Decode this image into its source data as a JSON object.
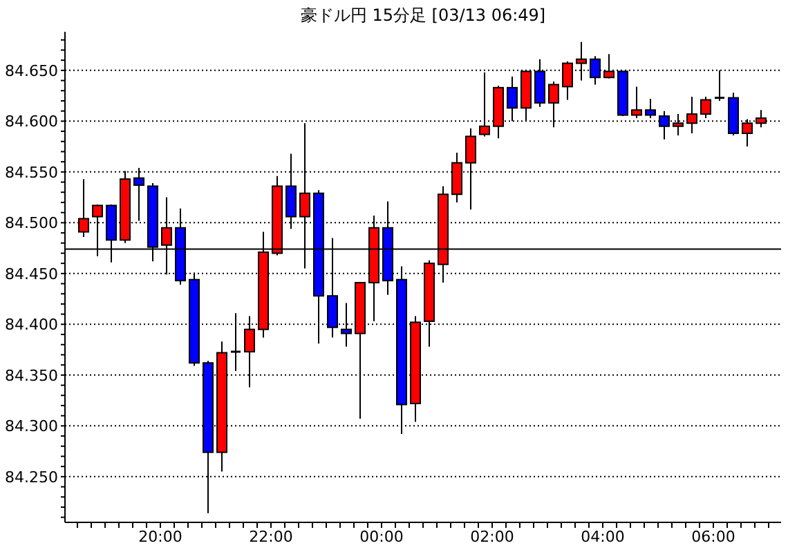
{
  "chart_data": {
    "type": "candlestick",
    "title": "豪ドル円 15分足 [03/13 06:49]",
    "x": [
      "--03-12T18:37:30",
      "--03-12T18:52:30",
      "--03-12T19:07:30",
      "--03-12T19:22:30",
      "--03-12T19:37:30",
      "--03-12T19:52:30",
      "--03-12T20:07:30",
      "--03-12T20:22:30",
      "--03-12T20:37:30",
      "--03-12T20:52:30",
      "--03-12T21:07:30",
      "--03-12T21:22:30",
      "--03-12T21:37:30",
      "--03-12T21:52:30",
      "--03-12T22:07:30",
      "--03-12T22:22:30",
      "--03-12T22:37:30",
      "--03-12T22:52:30",
      "--03-12T23:07:30",
      "--03-12T23:22:30",
      "--03-12T23:37:30",
      "--03-12T23:52:30",
      "--03-13T00:07:30",
      "--03-13T00:22:30",
      "--03-13T00:37:30",
      "--03-13T00:52:30",
      "--03-13T01:07:30",
      "--03-13T01:22:30",
      "--03-13T01:37:30",
      "--03-13T01:52:30",
      "--03-13T02:07:30",
      "--03-13T02:22:30",
      "--03-13T02:37:30",
      "--03-13T02:52:30",
      "--03-13T03:07:30",
      "--03-13T03:22:30",
      "--03-13T03:37:30",
      "--03-13T03:52:30",
      "--03-13T04:07:30",
      "--03-13T04:22:30",
      "--03-13T04:37:30",
      "--03-13T04:52:30",
      "--03-13T05:07:30",
      "--03-13T05:22:30",
      "--03-13T05:37:30",
      "--03-13T05:52:30",
      "--03-13T06:07:30",
      "--03-13T06:22:30",
      "--03-13T06:37:30",
      "--03-13T06:52:30"
    ],
    "ohlc": [
      [
        84.491,
        84.543,
        84.486,
        84.504
      ],
      [
        84.506,
        84.518,
        84.467,
        84.517
      ],
      [
        84.517,
        84.518,
        84.461,
        84.483
      ],
      [
        84.483,
        84.551,
        84.48,
        84.543
      ],
      [
        84.544,
        84.554,
        84.502,
        84.537
      ],
      [
        84.536,
        84.539,
        84.462,
        84.476
      ],
      [
        84.478,
        84.525,
        84.449,
        84.495
      ],
      [
        84.495,
        84.514,
        84.439,
        84.443
      ],
      [
        84.444,
        84.451,
        84.359,
        84.362
      ],
      [
        84.362,
        84.364,
        84.214,
        84.274
      ],
      [
        84.274,
        84.383,
        84.255,
        84.372
      ],
      [
        84.373,
        84.411,
        84.354,
        84.373
      ],
      [
        84.373,
        84.408,
        84.338,
        84.395
      ],
      [
        84.395,
        84.491,
        84.387,
        84.471
      ],
      [
        84.47,
        84.546,
        84.468,
        84.536
      ],
      [
        84.536,
        84.568,
        84.494,
        84.506
      ],
      [
        84.506,
        84.598,
        84.455,
        84.529
      ],
      [
        84.529,
        84.532,
        84.381,
        84.428
      ],
      [
        84.428,
        84.485,
        84.387,
        84.397
      ],
      [
        84.395,
        84.421,
        84.378,
        84.391
      ],
      [
        84.391,
        84.441,
        84.307,
        84.441
      ],
      [
        84.441,
        84.507,
        84.403,
        84.495
      ],
      [
        84.495,
        84.521,
        84.429,
        84.443
      ],
      [
        84.444,
        84.457,
        84.292,
        84.321
      ],
      [
        84.322,
        84.408,
        84.304,
        84.402
      ],
      [
        84.403,
        84.463,
        84.378,
        84.46
      ],
      [
        84.459,
        84.536,
        84.441,
        84.528
      ],
      [
        84.528,
        84.569,
        84.52,
        84.559
      ],
      [
        84.559,
        84.593,
        84.513,
        84.585
      ],
      [
        84.587,
        84.648,
        84.585,
        84.595
      ],
      [
        84.595,
        84.635,
        84.583,
        84.633
      ],
      [
        84.633,
        84.644,
        84.6,
        84.613
      ],
      [
        84.613,
        84.65,
        84.6,
        84.649
      ],
      [
        84.649,
        84.661,
        84.614,
        84.618
      ],
      [
        84.618,
        84.639,
        84.594,
        84.636
      ],
      [
        84.634,
        84.659,
        84.621,
        84.657
      ],
      [
        84.657,
        84.678,
        84.64,
        84.661
      ],
      [
        84.661,
        84.664,
        84.636,
        84.643
      ],
      [
        84.643,
        84.666,
        84.642,
        84.649
      ],
      [
        84.649,
        84.649,
        84.605,
        84.606
      ],
      [
        84.606,
        84.634,
        84.603,
        84.611
      ],
      [
        84.611,
        84.622,
        84.603,
        84.606
      ],
      [
        84.605,
        84.61,
        84.582,
        84.595
      ],
      [
        84.595,
        84.607,
        84.586,
        84.598
      ],
      [
        84.598,
        84.624,
        84.588,
        84.607
      ],
      [
        84.607,
        84.624,
        84.603,
        84.621
      ],
      [
        84.623,
        84.65,
        84.62,
        84.623
      ],
      [
        84.623,
        84.628,
        84.586,
        84.588
      ],
      [
        84.588,
        84.602,
        84.575,
        84.598
      ],
      [
        84.598,
        84.611,
        84.594,
        84.603
      ]
    ],
    "colors": [
      "#ff0000",
      "#ff0000",
      "#0000ff",
      "#ff0000",
      "#0000ff",
      "#0000ff",
      "#ff0000",
      "#0000ff",
      "#0000ff",
      "#0000ff",
      "#ff0000",
      "#000000",
      "#ff0000",
      "#ff0000",
      "#ff0000",
      "#0000ff",
      "#ff0000",
      "#0000ff",
      "#0000ff",
      "#0000ff",
      "#ff0000",
      "#ff0000",
      "#0000ff",
      "#0000ff",
      "#ff0000",
      "#ff0000",
      "#ff0000",
      "#ff0000",
      "#ff0000",
      "#ff0000",
      "#ff0000",
      "#0000ff",
      "#ff0000",
      "#0000ff",
      "#ff0000",
      "#ff0000",
      "#ff0000",
      "#0000ff",
      "#ff0000",
      "#0000ff",
      "#ff0000",
      "#0000ff",
      "#0000ff",
      "#ff0000",
      "#ff0000",
      "#ff0000",
      "#000000",
      "#0000ff",
      "#ff0000",
      "#ff0000"
    ],
    "xlim": [
      "--03-12T18:16:30",
      "--03-13T07:13:30"
    ],
    "xticks": [
      {
        "value": "--03-12T18:30",
        "label": null
      },
      {
        "value": "--03-12T18:45",
        "label": null
      },
      {
        "value": "--03-12T19:00",
        "label": null
      },
      {
        "value": "--03-12T19:15",
        "label": null
      },
      {
        "value": "--03-12T19:30",
        "label": null
      },
      {
        "value": "--03-12T19:45",
        "label": null
      },
      {
        "value": "--03-12T20:00",
        "label": "20:00"
      },
      {
        "value": "--03-12T20:15",
        "label": null
      },
      {
        "value": "--03-12T20:30",
        "label": null
      },
      {
        "value": "--03-12T20:45",
        "label": null
      },
      {
        "value": "--03-12T21:00",
        "label": null
      },
      {
        "value": "--03-12T21:15",
        "label": null
      },
      {
        "value": "--03-12T21:30",
        "label": null
      },
      {
        "value": "--03-12T21:45",
        "label": null
      },
      {
        "value": "--03-12T22:00",
        "label": "22:00"
      },
      {
        "value": "--03-12T22:15",
        "label": null
      },
      {
        "value": "--03-12T22:30",
        "label": null
      },
      {
        "value": "--03-12T22:45",
        "label": null
      },
      {
        "value": "--03-12T23:00",
        "label": null
      },
      {
        "value": "--03-12T23:15",
        "label": null
      },
      {
        "value": "--03-12T23:30",
        "label": null
      },
      {
        "value": "--03-12T23:45",
        "label": null
      },
      {
        "value": "--03-13T00:00",
        "label": "00:00"
      },
      {
        "value": "--03-13T00:15",
        "label": null
      },
      {
        "value": "--03-13T00:30",
        "label": null
      },
      {
        "value": "--03-13T00:45",
        "label": null
      },
      {
        "value": "--03-13T01:00",
        "label": null
      },
      {
        "value": "--03-13T01:15",
        "label": null
      },
      {
        "value": "--03-13T01:30",
        "label": null
      },
      {
        "value": "--03-13T01:45",
        "label": null
      },
      {
        "value": "--03-13T02:00",
        "label": "02:00"
      },
      {
        "value": "--03-13T02:15",
        "label": null
      },
      {
        "value": "--03-13T02:30",
        "label": null
      },
      {
        "value": "--03-13T02:45",
        "label": null
      },
      {
        "value": "--03-13T03:00",
        "label": null
      },
      {
        "value": "--03-13T03:15",
        "label": null
      },
      {
        "value": "--03-13T03:30",
        "label": null
      },
      {
        "value": "--03-13T03:45",
        "label": null
      },
      {
        "value": "--03-13T04:00",
        "label": "04:00"
      },
      {
        "value": "--03-13T04:15",
        "label": null
      },
      {
        "value": "--03-13T04:30",
        "label": null
      },
      {
        "value": "--03-13T04:45",
        "label": null
      },
      {
        "value": "--03-13T05:00",
        "label": null
      },
      {
        "value": "--03-13T05:15",
        "label": null
      },
      {
        "value": "--03-13T05:30",
        "label": null
      },
      {
        "value": "--03-13T05:45",
        "label": null
      },
      {
        "value": "--03-13T06:00",
        "label": "06:00"
      },
      {
        "value": "--03-13T06:15",
        "label": null
      },
      {
        "value": "--03-13T06:30",
        "label": null
      },
      {
        "value": "--03-13T06:45",
        "label": null
      },
      {
        "value": "--03-13T07:00",
        "label": null
      }
    ],
    "ylim": [
      84.205,
      84.688
    ],
    "yticks": [
      {
        "value": 84.21,
        "label": null
      },
      {
        "value": 84.22,
        "label": null
      },
      {
        "value": 84.23,
        "label": null
      },
      {
        "value": 84.24,
        "label": null
      },
      {
        "value": 84.25,
        "label": "84.250"
      },
      {
        "value": 84.26,
        "label": null
      },
      {
        "value": 84.27,
        "label": null
      },
      {
        "value": 84.28,
        "label": null
      },
      {
        "value": 84.29,
        "label": null
      },
      {
        "value": 84.3,
        "label": "84.300"
      },
      {
        "value": 84.31,
        "label": null
      },
      {
        "value": 84.32,
        "label": null
      },
      {
        "value": 84.33,
        "label": null
      },
      {
        "value": 84.34,
        "label": null
      },
      {
        "value": 84.35,
        "label": "84.350"
      },
      {
        "value": 84.36,
        "label": null
      },
      {
        "value": 84.37,
        "label": null
      },
      {
        "value": 84.38,
        "label": null
      },
      {
        "value": 84.39,
        "label": null
      },
      {
        "value": 84.4,
        "label": "84.400"
      },
      {
        "value": 84.41,
        "label": null
      },
      {
        "value": 84.42,
        "label": null
      },
      {
        "value": 84.43,
        "label": null
      },
      {
        "value": 84.44,
        "label": null
      },
      {
        "value": 84.45,
        "label": "84.450"
      },
      {
        "value": 84.46,
        "label": null
      },
      {
        "value": 84.47,
        "label": null
      },
      {
        "value": 84.48,
        "label": null
      },
      {
        "value": 84.49,
        "label": null
      },
      {
        "value": 84.5,
        "label": "84.500"
      },
      {
        "value": 84.51,
        "label": null
      },
      {
        "value": 84.52,
        "label": null
      },
      {
        "value": 84.53,
        "label": null
      },
      {
        "value": 84.54,
        "label": null
      },
      {
        "value": 84.55,
        "label": "84.550"
      },
      {
        "value": 84.56,
        "label": null
      },
      {
        "value": 84.57,
        "label": null
      },
      {
        "value": 84.58,
        "label": null
      },
      {
        "value": 84.59,
        "label": null
      },
      {
        "value": 84.6,
        "label": "84.600"
      },
      {
        "value": 84.61,
        "label": null
      },
      {
        "value": 84.62,
        "label": null
      },
      {
        "value": 84.63,
        "label": null
      },
      {
        "value": 84.64,
        "label": null
      },
      {
        "value": 84.65,
        "label": "84.650"
      },
      {
        "value": 84.66,
        "label": null
      },
      {
        "value": 84.67,
        "label": null
      },
      {
        "value": 84.68,
        "label": null
      }
    ],
    "grid": "y",
    "ref_lines": [
      {
        "axis": "y",
        "value": 84.474,
        "color": "#000000"
      }
    ]
  }
}
